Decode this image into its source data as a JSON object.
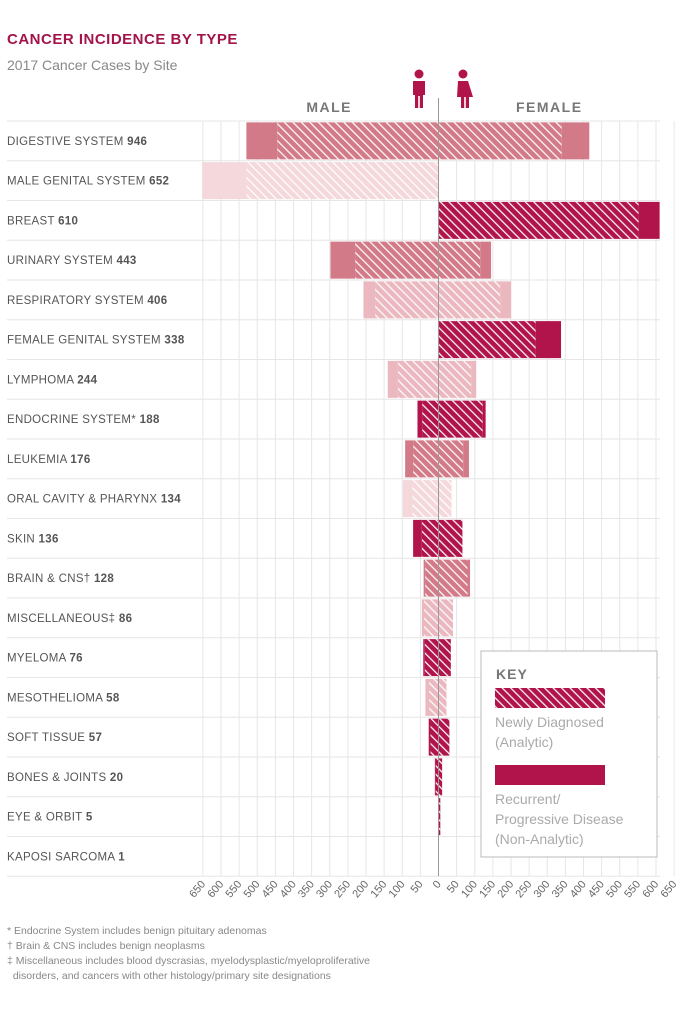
{
  "chart_data": {
    "type": "bar",
    "orientation": "horizontal",
    "diverging": true,
    "title": "CANCER INCIDENCE BY TYPE",
    "subtitle": "2017 Cancer Cases by Site",
    "left_header": "MALE",
    "right_header": "FEMALE",
    "xlim": [
      -650,
      650
    ],
    "x_ticks": [
      650,
      600,
      550,
      500,
      450,
      400,
      350,
      300,
      250,
      200,
      150,
      100,
      50,
      0,
      50,
      100,
      150,
      200,
      250,
      300,
      350,
      400,
      450,
      500,
      550,
      600,
      650
    ],
    "grid": true,
    "legend_position": "bottom-right",
    "categories": [
      {
        "name": "DIGESTIVE SYSTEM",
        "total": "946",
        "style": "medium",
        "male_new": 445,
        "male_recurrent": 85,
        "female_new": 340,
        "female_recurrent": 76
      },
      {
        "name": "MALE GENITAL SYSTEM",
        "total": "652",
        "style": "light",
        "male_new": 530,
        "male_recurrent": 122,
        "female_new": 0,
        "female_recurrent": 0
      },
      {
        "name": "BREAST",
        "total": "610",
        "style": "dark",
        "male_new": 0,
        "male_recurrent": 0,
        "female_new": 552,
        "female_recurrent": 58
      },
      {
        "name": "URINARY SYSTEM",
        "total": "443",
        "style": "medium",
        "male_new": 230,
        "male_recurrent": 68,
        "female_new": 115,
        "female_recurrent": 30
      },
      {
        "name": "RESPIRATORY SYSTEM",
        "total": "406",
        "style": "lightmed",
        "male_new": 175,
        "male_recurrent": 32,
        "female_new": 170,
        "female_recurrent": 30
      },
      {
        "name": "FEMALE GENITAL SYSTEM",
        "total": "338",
        "style": "dark",
        "male_new": 0,
        "male_recurrent": 0,
        "female_new": 268,
        "female_recurrent": 70
      },
      {
        "name": "LYMPHOMA",
        "total": "244",
        "style": "lightmed",
        "male_new": 112,
        "male_recurrent": 28,
        "female_new": 90,
        "female_recurrent": 14
      },
      {
        "name": "ENDOCRINE SYSTEM*",
        "total": "188",
        "style": "dark",
        "male_new": 45,
        "male_recurrent": 13,
        "female_new": 122,
        "female_recurrent": 8
      },
      {
        "name": "LEUKEMIA",
        "total": "176",
        "style": "medium",
        "male_new": 70,
        "male_recurrent": 22,
        "female_new": 68,
        "female_recurrent": 16
      },
      {
        "name": "ORAL CAVITY & PHARYNX",
        "total": "134",
        "style": "light",
        "male_new": 72,
        "male_recurrent": 26,
        "female_new": 36,
        "female_recurrent": 0
      },
      {
        "name": "SKIN",
        "total": "136",
        "style": "dark",
        "male_new": 46,
        "male_recurrent": 24,
        "female_new": 66,
        "female_recurrent": 0
      },
      {
        "name": "BRAIN & CNS†",
        "total": "128",
        "style": "medium",
        "male_new": 37,
        "male_recurrent": 4,
        "female_new": 80,
        "female_recurrent": 7
      },
      {
        "name": "MISCELLANEOUS‡",
        "total": "86",
        "style": "lightmed",
        "male_new": 40,
        "male_recurrent": 6,
        "female_new": 40,
        "female_recurrent": 0
      },
      {
        "name": "MYELOMA",
        "total": "76",
        "style": "dark",
        "male_new": 38,
        "male_recurrent": 4,
        "female_new": 34,
        "female_recurrent": 0
      },
      {
        "name": "MESOTHELIOMA",
        "total": "58",
        "style": "lightmed",
        "male_new": 26,
        "male_recurrent": 10,
        "female_new": 22,
        "female_recurrent": 0
      },
      {
        "name": "SOFT TISSUE",
        "total": "57",
        "style": "dark",
        "male_new": 22,
        "male_recurrent": 5,
        "female_new": 30,
        "female_recurrent": 0
      },
      {
        "name": "BONES & JOINTS",
        "total": "20",
        "style": "dark",
        "male_new": 8,
        "male_recurrent": 2,
        "female_new": 10,
        "female_recurrent": 0
      },
      {
        "name": "EYE & ORBIT",
        "total": "5",
        "style": "dark",
        "male_new": 0,
        "male_recurrent": 0,
        "female_new": 5,
        "female_recurrent": 0
      },
      {
        "name": "KAPOSI SARCOMA",
        "total": "1",
        "style": "dark",
        "male_new": 1,
        "male_recurrent": 0,
        "female_new": 0,
        "female_recurrent": 0
      }
    ],
    "legend": {
      "title": "KEY",
      "items": [
        {
          "label_line1": "Newly Diagnosed",
          "label_line2": "(Analytic)",
          "line3": "",
          "pattern": "hatched"
        },
        {
          "label_line1": "Recurrent/",
          "label_line2": "Progressive Disease",
          "line3": "(Non-Analytic)",
          "pattern": "solid"
        }
      ]
    },
    "colors": {
      "dark": "#b0144a",
      "medium": "#d27a87",
      "lightmed": "#ebb8c0",
      "light": "#f4d8dc",
      "title": "#a3154a",
      "grid": "#e6e6e6",
      "axis": "#999999"
    }
  },
  "footnotes": [
    "* Endocrine System includes benign pituitary adenomas",
    "† Brain & CNS includes benign neoplasms",
    "‡ Miscellaneous includes blood dyscrasias, myelodysplastic/myeloproliferative",
    "  disorders, and cancers with other histology/primary site designations"
  ],
  "icons": {
    "male": "male-person-icon",
    "female": "female-person-icon"
  }
}
